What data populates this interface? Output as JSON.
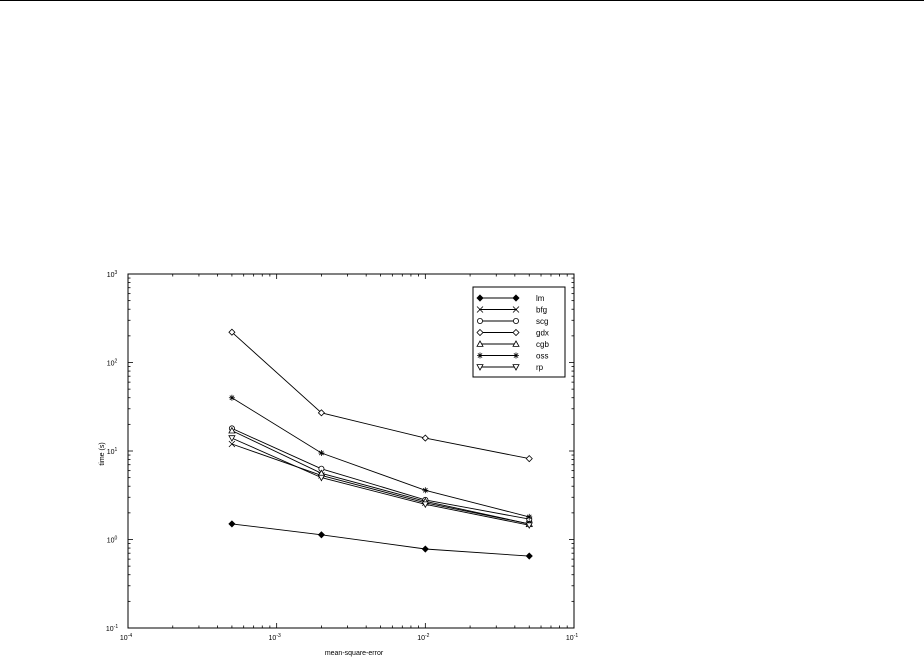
{
  "chart_data": {
    "type": "line",
    "title": "",
    "xlabel": "mean-square-error",
    "ylabel": "time (s)",
    "xscale": "log",
    "yscale": "log",
    "xlim": [
      0.0001,
      0.1
    ],
    "ylim": [
      0.1,
      1000
    ],
    "grid": false,
    "legend_position": "top-right",
    "x_ticks": [
      {
        "value": 0.0001,
        "base": "10",
        "exp": "-4"
      },
      {
        "value": 0.001,
        "base": "10",
        "exp": "-3"
      },
      {
        "value": 0.01,
        "base": "10",
        "exp": "-2"
      },
      {
        "value": 0.1,
        "base": "10",
        "exp": "-1"
      }
    ],
    "y_ticks": [
      {
        "value": 0.1,
        "base": "10",
        "exp": "-1"
      },
      {
        "value": 1,
        "base": "10",
        "exp": "0"
      },
      {
        "value": 10,
        "base": "10",
        "exp": "1"
      },
      {
        "value": 100,
        "base": "10",
        "exp": "2"
      },
      {
        "value": 1000,
        "base": "10",
        "exp": "3"
      }
    ],
    "x": [
      0.0005,
      0.002,
      0.01,
      0.05
    ],
    "series": [
      {
        "name": "lm",
        "marker": "diamond-filled",
        "values": [
          1.5,
          1.13,
          0.78,
          0.65
        ]
      },
      {
        "name": "bfg",
        "marker": "x",
        "values": [
          12,
          5.3,
          2.6,
          1.5
        ]
      },
      {
        "name": "scg",
        "marker": "circle",
        "values": [
          18,
          6.3,
          2.8,
          1.7
        ]
      },
      {
        "name": "gdx",
        "marker": "diamond",
        "values": [
          220,
          27,
          14,
          8.2
        ]
      },
      {
        "name": "cgb",
        "marker": "triangle-up",
        "values": [
          17,
          5.6,
          2.7,
          1.5
        ]
      },
      {
        "name": "oss",
        "marker": "star",
        "values": [
          40,
          9.5,
          3.6,
          1.8
        ]
      },
      {
        "name": "rp",
        "marker": "triangle-down",
        "values": [
          14,
          5.0,
          2.5,
          1.45
        ]
      }
    ]
  }
}
